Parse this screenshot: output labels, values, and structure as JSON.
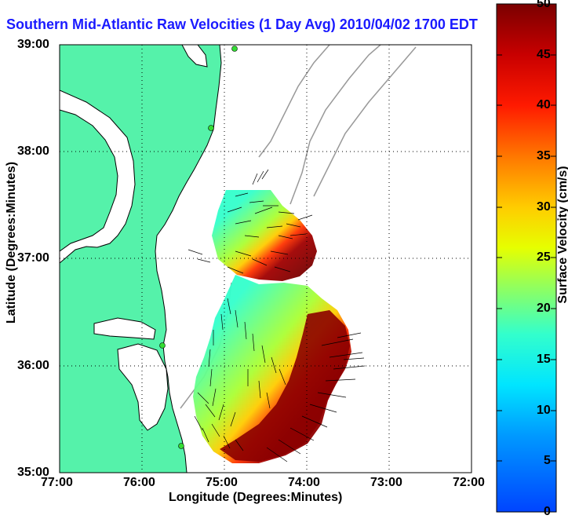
{
  "title": "Southern Mid-Atlantic Raw Velocities (1 Day Avg) 2010/04/02 1700 EDT",
  "map": {
    "xlabel": "Longitude (Degrees:Minutes)",
    "ylabel": "Latitude (Degrees:Minutes)",
    "x_ticks": [
      "77:00",
      "76:00",
      "75:00",
      "74:00",
      "73:00",
      "72:00"
    ],
    "y_ticks": [
      "39:00",
      "38:00",
      "37:00",
      "36:00",
      "35:00"
    ],
    "land_color": "#55f2aa",
    "grid": "dotted"
  },
  "colorbar": {
    "label": "Surface Velocity (cm/s)",
    "ticks": [
      "50",
      "45",
      "40",
      "35",
      "30",
      "25",
      "20",
      "15",
      "10",
      "5",
      "0"
    ],
    "min": 0,
    "max": 50,
    "colormap": "jet"
  }
}
